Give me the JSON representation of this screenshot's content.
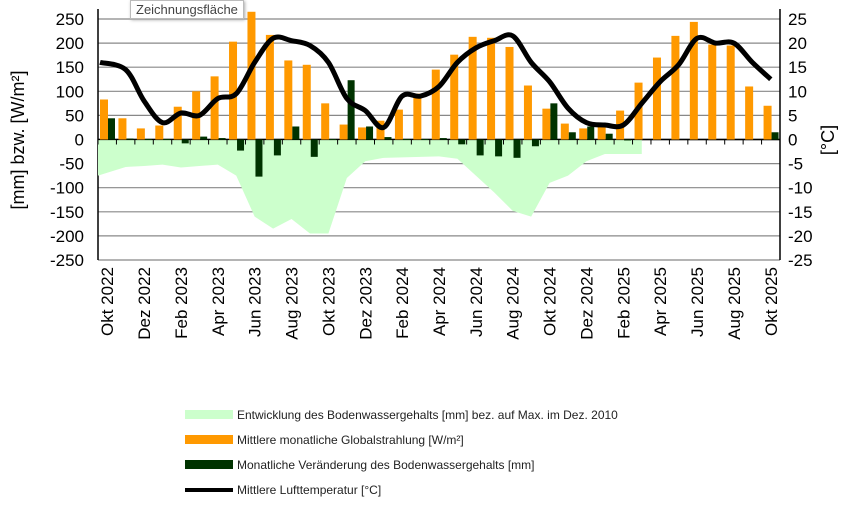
{
  "tooltip": "Zeichnungsfläche",
  "chart_data": {
    "type": "bar",
    "categories": [
      "Okt 2022",
      "Nov 2022",
      "Dez 2022",
      "Jan 2023",
      "Feb 2023",
      "Mär 2023",
      "Apr 2023",
      "Mai 2023",
      "Jun 2023",
      "Jul 2023",
      "Aug 2023",
      "Sep 2023",
      "Okt 2023",
      "Nov 2023",
      "Dez 2023",
      "Jan 2024",
      "Feb 2024",
      "Mär 2024",
      "Apr 2024",
      "Mai 2024",
      "Jun 2024",
      "Jul 2024",
      "Aug 2024",
      "Sep 2024",
      "Okt 2024",
      "Nov 2024",
      "Dez 2024",
      "Jan 2025",
      "Feb 2025",
      "Mär 2025",
      "Apr 2025",
      "Mai 2025",
      "Jun 2025",
      "Jul 2025",
      "Aug 2025",
      "Sep 2025",
      "Okt 2025"
    ],
    "tick_labels": [
      "Okt 2022",
      "Dez 2022",
      "Feb 2023",
      "Apr 2023",
      "Jun 2023",
      "Aug 2023",
      "Okt 2023",
      "Dez 2023",
      "Feb 2024",
      "Apr 2024",
      "Jun 2024",
      "Aug 2024",
      "Okt 2024",
      "Dez 2024",
      "Feb 2025",
      "Apr 2025",
      "Jun 2025",
      "Aug 2025",
      "Okt 2025"
    ],
    "ylabel": "[mm] bzw. [W/m²]",
    "y2label": "[°C]",
    "ylim": [
      -250,
      250
    ],
    "y2lim": [
      -25,
      25
    ],
    "yticks": [
      250,
      200,
      150,
      100,
      50,
      0,
      -50,
      -100,
      -150,
      -200,
      -250
    ],
    "y2ticks": [
      25,
      20,
      15,
      10,
      5,
      0,
      -5,
      -10,
      -15,
      -20,
      -25
    ],
    "grid": true,
    "legend_placement": "bottom",
    "series": [
      {
        "name": "Entwicklung des Bodenwassergehalts [mm] bez. auf Max. im Dez. 2010",
        "type": "area",
        "color": "#ccffcc",
        "values": [
          -75,
          -57,
          -55,
          -52,
          -58,
          -55,
          -52,
          -75,
          -160,
          -185,
          -165,
          -195,
          -195,
          -80,
          -45,
          -38,
          -37,
          -36,
          -35,
          -40,
          -75,
          -110,
          -148,
          -160,
          -90,
          -75,
          -45,
          -30,
          -30,
          -30,
          null,
          null,
          null,
          null,
          null,
          null,
          null
        ]
      },
      {
        "name": "Mittlere monatliche Globalstrahlung [W/m²]",
        "type": "bar",
        "color": "#ff9900",
        "values": [
          83,
          44,
          23,
          29,
          68,
          100,
          131,
          203,
          265,
          217,
          164,
          155,
          75,
          31,
          25,
          39,
          62,
          95,
          145,
          176,
          213,
          211,
          192,
          112,
          64,
          33,
          23,
          27,
          60,
          118,
          170,
          215,
          244,
          197,
          195,
          110,
          70
        ]
      },
      {
        "name": "Monatliche Veränderung des Bodenwassergehalts [mm]",
        "type": "bar",
        "color": "#003300",
        "values": [
          44,
          2,
          1,
          1,
          -8,
          6,
          3,
          -23,
          -77,
          -33,
          27,
          -36,
          1,
          123,
          27,
          5,
          1,
          1,
          3,
          -10,
          -33,
          -35,
          -38,
          -14,
          75,
          15,
          27,
          12,
          0,
          null,
          null,
          null,
          null,
          null,
          null,
          null,
          15
        ]
      },
      {
        "name": "Mittlere Lufttemperatur [°C]",
        "type": "line",
        "axis": "right",
        "color": "#000000",
        "values": [
          16,
          14.5,
          8,
          3.5,
          5.5,
          5,
          8.5,
          9.5,
          16,
          21,
          20.5,
          19.5,
          16,
          8.5,
          6,
          2.5,
          9,
          9,
          11,
          16,
          19,
          20.5,
          21.5,
          16,
          12,
          6.5,
          3.5,
          3,
          3,
          7.5,
          12,
          15.5,
          21,
          20,
          20,
          16,
          12.5
        ]
      }
    ]
  }
}
